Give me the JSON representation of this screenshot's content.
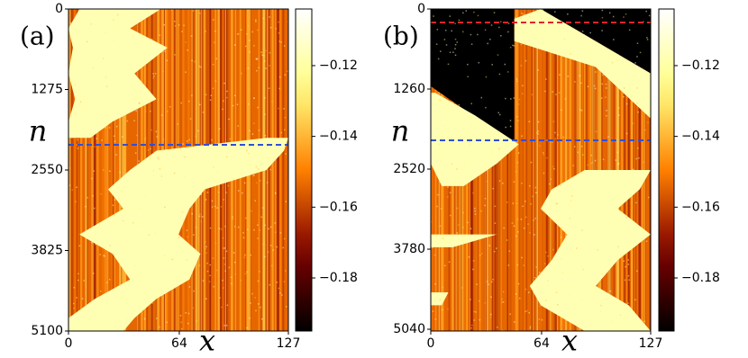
{
  "chart_data": [
    {
      "type": "heatmap",
      "panel_label": "(a)",
      "xlabel": "x",
      "ylabel": "n",
      "xlim": [
        0,
        127
      ],
      "xticks": [
        0,
        64,
        127
      ],
      "ylim": [
        0,
        5100
      ],
      "yticks": [
        0,
        1275,
        2550,
        3825,
        5100
      ],
      "y_inverted": true,
      "colormap": "afmhot",
      "colorbar": {
        "clim": [
          -0.195,
          -0.104
        ],
        "ticks": [
          {
            "value": -0.12,
            "label": "−0.12"
          },
          {
            "value": -0.14,
            "label": "−0.14"
          },
          {
            "value": -0.16,
            "label": "−0.16"
          },
          {
            "value": -0.18,
            "label": "−0.18"
          }
        ]
      },
      "markers": [
        {
          "y": 2151,
          "color": "#2f4fd8"
        }
      ]
    },
    {
      "type": "heatmap",
      "panel_label": "(b)",
      "xlabel": "x",
      "ylabel": "n",
      "xlim": [
        0,
        127
      ],
      "xticks": [
        0,
        64,
        127
      ],
      "ylim": [
        0,
        5068
      ],
      "yticks": [
        0,
        1260,
        2520,
        3780,
        5040
      ],
      "y_inverted": true,
      "colormap": "afmhot",
      "colorbar": {
        "clim": [
          -0.195,
          -0.104
        ],
        "ticks": [
          {
            "value": -0.12,
            "label": "−0.12"
          },
          {
            "value": -0.14,
            "label": "−0.14"
          },
          {
            "value": -0.16,
            "label": "−0.16"
          },
          {
            "value": -0.18,
            "label": "−0.18"
          }
        ]
      },
      "markers": [
        {
          "y": 212,
          "color": "#e0242a"
        },
        {
          "y": 2067,
          "color": "#2f4fd8"
        }
      ]
    }
  ]
}
